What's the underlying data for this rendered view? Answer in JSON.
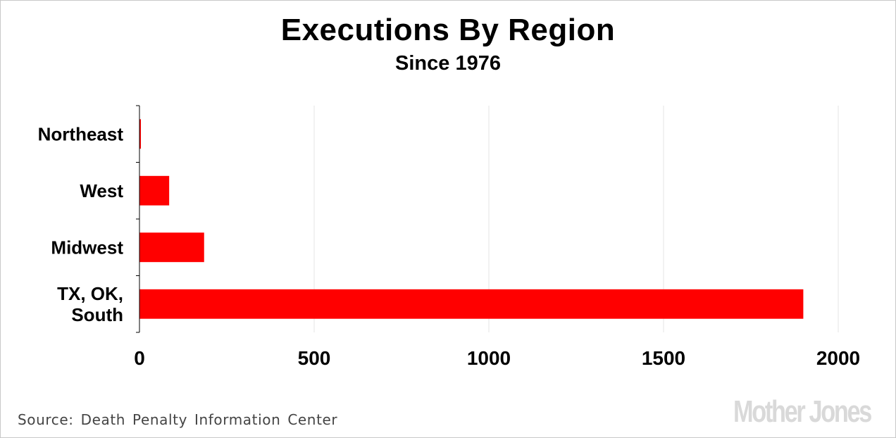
{
  "chart_data": {
    "type": "bar",
    "orientation": "horizontal",
    "title": "Executions By Region",
    "subtitle": "Since 1976",
    "categories": [
      [
        "Northeast"
      ],
      [
        "West"
      ],
      [
        "Midwest"
      ],
      [
        "TX, OK,",
        "South"
      ]
    ],
    "values": [
      4,
      85,
      185,
      1900
    ],
    "xlim": [
      0,
      2000
    ],
    "xticks": [
      "0",
      "500",
      "1000",
      "1500",
      "2000"
    ],
    "xtick_values": [
      0,
      500,
      1000,
      1500,
      2000
    ],
    "xlabel": "",
    "ylabel": "",
    "grid": "vertical",
    "bar_color": "#ff0000"
  },
  "footer": {
    "source": "Source: Death Penalty Information Center",
    "logo": "Mother Jones"
  },
  "colors": {
    "bar": "#ff0000",
    "grid": "#e6e6e6",
    "axis": "#000000",
    "logo": "#d9d9d9"
  }
}
